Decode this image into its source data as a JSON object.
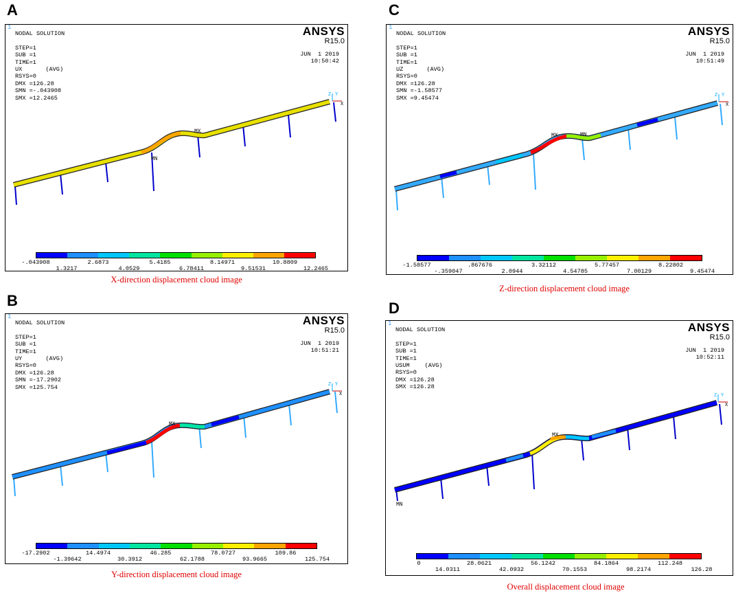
{
  "panels": [
    {
      "key": "A",
      "letter": "A",
      "corner_mark": "1",
      "header": {
        "title": "NODAL SOLUTION",
        "step": "STEP=1",
        "sub": "SUB =1",
        "time": "TIME=1",
        "component": "UX",
        "avg": "(AVG)",
        "rsys": "RSYS=0",
        "dmx": "DMX =126.28",
        "smn": "SMN =-.043908",
        "smx": "SMX =12.2465"
      },
      "branding": {
        "product": "ANSYS",
        "release": "R15.0",
        "date": "JUN  1 2019",
        "time_of_day": "10:50:42"
      },
      "model_labels": {
        "max": "MX",
        "min": "MN",
        "axis_x": "X",
        "axis_y": "Y",
        "axis_z": "Z"
      },
      "legend": {
        "upper": [
          "-.043908",
          "2.6873",
          "5.4185",
          "8.14971",
          "10.8809"
        ],
        "lower": [
          "1.3217",
          "4.0529",
          "6.78411",
          "9.51531",
          "12.2465"
        ]
      },
      "caption": "X-direction displacement cloud image"
    },
    {
      "key": "C",
      "letter": "C",
      "corner_mark": "1",
      "header": {
        "title": "NODAL SOLUTION",
        "step": "STEP=1",
        "sub": "SUB =1",
        "time": "TIME=1",
        "component": "UZ",
        "avg": "(AVG)",
        "rsys": "RSYS=0",
        "dmx": "DMX =126.28",
        "smn": "SMN =-1.58577",
        "smx": "SMX =9.45474"
      },
      "branding": {
        "product": "ANSYS",
        "release": "R15.0",
        "date": "JUN  1 2019",
        "time_of_day": "10:51:49"
      },
      "model_labels": {
        "max": "MX",
        "min": "MN",
        "axis_x": "X",
        "axis_y": "Y",
        "axis_z": "Z"
      },
      "legend": {
        "upper": [
          "-1.58577",
          ".867676",
          "3.32112",
          "5.77457",
          "8.22802"
        ],
        "lower": [
          "-.359047",
          "2.0944",
          "4.54785",
          "7.00129",
          "9.45474"
        ]
      },
      "caption": "Z-direction displacement cloud image"
    },
    {
      "key": "B",
      "letter": "B",
      "corner_mark": "1",
      "header": {
        "title": "NODAL SOLUTION",
        "step": "STEP=1",
        "sub": "SUB =1",
        "time": "TIME=1",
        "component": "UY",
        "avg": "(AVG)",
        "rsys": "RSYS=0",
        "dmx": "DMX =126.28",
        "smn": "SMN =-17.2902",
        "smx": "SMX =125.754"
      },
      "branding": {
        "product": "ANSYS",
        "release": "R15.0",
        "date": "JUN  1 2019",
        "time_of_day": "10:51:21"
      },
      "model_labels": {
        "max": "MX",
        "min": "MN",
        "axis_x": "X",
        "axis_y": "Y",
        "axis_z": "Z"
      },
      "legend": {
        "upper": [
          "-17.2902",
          "14.4974",
          "46.285",
          "78.0727",
          "109.86"
        ],
        "lower": [
          "-1.39642",
          "30.3912",
          "62.1788",
          "93.9665",
          "125.754"
        ]
      },
      "caption": "Y-direction displacement cloud image"
    },
    {
      "key": "D",
      "letter": "D",
      "corner_mark": "1",
      "header": {
        "title": "NODAL SOLUTION",
        "step": "STEP=1",
        "sub": "SUB =1",
        "time": "TIME=1",
        "component": "USUM",
        "avg": "(AVG)",
        "rsys": "RSYS=0",
        "dmx": "DMX =126.28",
        "smn": "",
        "smx": "SMX =126.28"
      },
      "branding": {
        "product": "ANSYS",
        "release": "R15.0",
        "date": "JUN  1 2019",
        "time_of_day": "10:52:11"
      },
      "model_labels": {
        "max": "MX",
        "min": "MN",
        "axis_x": "X",
        "axis_y": "Y",
        "axis_z": "Z"
      },
      "legend": {
        "upper": [
          "0",
          "28.0621",
          "56.1242",
          "84.1864",
          "112.248"
        ],
        "lower": [
          "14.0311",
          "42.0932",
          "70.1553",
          "98.2174",
          "126.28"
        ]
      },
      "caption": "Overall displacement cloud image"
    }
  ],
  "contour_colors": [
    "#0000ff",
    "#1e90ff",
    "#00c8ff",
    "#00e6a0",
    "#00e000",
    "#96f000",
    "#fff000",
    "#ffa500",
    "#ff0000"
  ]
}
